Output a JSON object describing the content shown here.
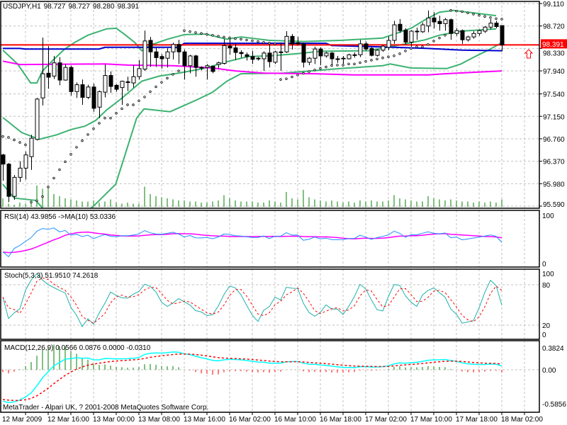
{
  "header": {
    "symbol": "USDJPY,H1",
    "open": "98.727",
    "high": "98.727",
    "low": "98.280",
    "close": "98.391"
  },
  "price_axis": {
    "labels": [
      "99.110",
      "98.720",
      "98.330",
      "97.940",
      "97.540",
      "97.150",
      "96.760",
      "96.370",
      "95.980",
      "95.590"
    ],
    "current_price": "98.391"
  },
  "rsi_panel": {
    "title": "RSI(14) 43.9856  ->MA(10) 53.0336",
    "axis_labels": [
      "100",
      "0"
    ]
  },
  "stoch_panel": {
    "title": "Stoch(5,3,3) 51.9510 74.2618",
    "axis_labels": [
      "100",
      "80",
      "20",
      "0"
    ]
  },
  "macd_panel": {
    "title": "MACD(12,26,9) 0.0566 0.0876 0.0000 -0.0310",
    "axis_labels": [
      "0.3824",
      "0.00",
      "-0.5856"
    ]
  },
  "time_axis": {
    "labels": [
      "12 Mar 2009",
      "12 Mar 16:00",
      "13 Mar 00:00",
      "13 Mar 08:00",
      "13 Mar 16:00",
      "16 Mar 02:00",
      "16 Mar 10:00",
      "16 Mar 18:00",
      "17 Mar 02:00",
      "17 Mar 10:00",
      "17 Mar 18:00",
      "18 Mar 02:00"
    ]
  },
  "copyright": "MetaTrader - Alpari UK, ? 2001-2008 MetaQuotes Software Corp.",
  "colors": {
    "bands": "#3cb371",
    "ma_slow": "#ff00ff",
    "ma_fast": "#0000cd",
    "price_line": "#ff0000",
    "volume": "#008000",
    "rsi": "#1e90ff",
    "rsi_ma": "#ff00ff",
    "stoch_main": "#20b2aa",
    "stoch_signal": "#ff0000",
    "macd_main": "#00ffff",
    "macd_signal": "#ff0000",
    "hist_pos": "#008000",
    "hist_neg": "#ff0000",
    "grid": "#c0c0c0"
  },
  "chart_data": {
    "type": "candlestick",
    "title": "USDJPY,H1",
    "ylim": [
      95.59,
      99.11
    ],
    "current_price": 98.391,
    "candles": [
      [
        96.48,
        96.5,
        96.03,
        96.32
      ],
      [
        96.32,
        96.34,
        95.66,
        95.76
      ],
      [
        95.76,
        96.13,
        95.7,
        96.09
      ],
      [
        96.09,
        96.37,
        96.01,
        96.25
      ],
      [
        96.25,
        96.54,
        96.05,
        96.48
      ],
      [
        96.45,
        96.83,
        96.22,
        96.77
      ],
      [
        96.75,
        97.47,
        96.73,
        97.45
      ],
      [
        97.47,
        98.52,
        97.34,
        97.89
      ],
      [
        97.9,
        98.37,
        97.63,
        97.83
      ],
      [
        97.85,
        98.2,
        97.8,
        98.08
      ],
      [
        98.08,
        98.18,
        97.69,
        97.78
      ],
      [
        97.78,
        98.06,
        97.77,
        98.0
      ],
      [
        98.0,
        98.03,
        97.51,
        97.58
      ],
      [
        97.58,
        97.74,
        97.47,
        97.7
      ],
      [
        97.7,
        97.79,
        97.35,
        97.48
      ],
      [
        97.48,
        97.7,
        97.45,
        97.66
      ],
      [
        97.66,
        97.72,
        97.23,
        97.29
      ],
      [
        97.31,
        97.6,
        97.12,
        97.58
      ],
      [
        97.57,
        98.05,
        97.48,
        97.86
      ],
      [
        97.86,
        97.93,
        97.56,
        97.67
      ],
      [
        97.69,
        97.71,
        97.58,
        97.62
      ],
      [
        97.65,
        97.77,
        97.35,
        97.76
      ],
      [
        97.74,
        97.84,
        97.59,
        97.75
      ],
      [
        97.73,
        98.04,
        97.65,
        97.84
      ],
      [
        97.84,
        98.13,
        97.79,
        97.98
      ],
      [
        97.97,
        98.64,
        97.94,
        98.46
      ],
      [
        98.47,
        98.53,
        98.01,
        98.27
      ],
      [
        98.27,
        98.34,
        98.01,
        98.17
      ],
      [
        98.19,
        98.23,
        97.98,
        98.15
      ],
      [
        98.16,
        98.33,
        98.0,
        98.27
      ],
      [
        98.27,
        98.43,
        98.14,
        98.4
      ],
      [
        98.4,
        98.48,
        98.06,
        98.27
      ],
      [
        98.27,
        98.31,
        97.79,
        98.03
      ],
      [
        98.03,
        98.22,
        97.9,
        98.2
      ],
      [
        98.2,
        98.22,
        97.84,
        98.0
      ],
      [
        98.0,
        98.02,
        97.95,
        97.99
      ],
      [
        98.0,
        98.06,
        97.79,
        98.03
      ],
      [
        98.02,
        98.03,
        97.9,
        97.93
      ],
      [
        98.05,
        98.1,
        97.98,
        98.08
      ],
      [
        98.07,
        98.49,
        98.05,
        98.38
      ],
      [
        98.37,
        98.49,
        98.22,
        98.34
      ],
      [
        98.34,
        98.41,
        98.13,
        98.26
      ],
      [
        98.26,
        98.3,
        98.17,
        98.24
      ],
      [
        98.22,
        98.26,
        98.12,
        98.19
      ],
      [
        98.19,
        98.29,
        98.06,
        98.14
      ],
      [
        98.16,
        98.18,
        98.12,
        98.15
      ],
      [
        98.15,
        98.28,
        97.94,
        98.25
      ],
      [
        98.25,
        98.41,
        98.0,
        98.1
      ],
      [
        98.09,
        98.29,
        98.06,
        98.27
      ],
      [
        98.27,
        98.43,
        97.94,
        98.27
      ],
      [
        98.27,
        98.63,
        98.25,
        98.54
      ],
      [
        98.54,
        98.58,
        98.31,
        98.41
      ],
      [
        98.43,
        98.53,
        98.38,
        98.41
      ],
      [
        98.41,
        98.43,
        98.0,
        98.09
      ],
      [
        98.09,
        98.18,
        98.04,
        98.16
      ],
      [
        98.16,
        98.36,
        98.06,
        98.32
      ],
      [
        98.32,
        98.35,
        98.04,
        98.2
      ],
      [
        98.2,
        98.27,
        98.17,
        98.25
      ],
      [
        98.25,
        98.27,
        98.04,
        98.15
      ],
      [
        98.15,
        98.2,
        98.08,
        98.15
      ],
      [
        98.16,
        98.2,
        98.06,
        98.16
      ],
      [
        98.15,
        98.24,
        98.14,
        98.22
      ],
      [
        98.22,
        98.26,
        98.17,
        98.22
      ],
      [
        98.22,
        98.48,
        98.18,
        98.41
      ],
      [
        98.41,
        98.45,
        98.29,
        98.32
      ],
      [
        98.33,
        98.35,
        98.19,
        98.21
      ],
      [
        98.21,
        98.32,
        98.19,
        98.3
      ],
      [
        98.3,
        98.39,
        98.27,
        98.37
      ],
      [
        98.35,
        98.54,
        98.3,
        98.47
      ],
      [
        98.47,
        98.81,
        98.41,
        98.74
      ],
      [
        98.75,
        98.84,
        98.6,
        98.64
      ],
      [
        98.65,
        98.68,
        98.4,
        98.44
      ],
      [
        98.44,
        98.65,
        98.36,
        98.63
      ],
      [
        98.63,
        98.69,
        98.48,
        98.62
      ],
      [
        98.62,
        98.78,
        98.6,
        98.74
      ],
      [
        98.72,
        98.99,
        98.61,
        98.86
      ],
      [
        98.86,
        98.96,
        98.68,
        98.79
      ],
      [
        98.8,
        98.9,
        98.64,
        98.76
      ],
      [
        98.76,
        98.86,
        98.64,
        98.83
      ],
      [
        98.83,
        98.85,
        98.48,
        98.59
      ],
      [
        98.59,
        98.68,
        98.55,
        98.64
      ],
      [
        98.64,
        98.66,
        98.41,
        98.48
      ],
      [
        98.48,
        98.55,
        98.45,
        98.53
      ],
      [
        98.53,
        98.63,
        98.5,
        98.59
      ],
      [
        98.59,
        98.66,
        98.55,
        98.64
      ],
      [
        98.63,
        98.72,
        98.6,
        98.7
      ],
      [
        98.7,
        98.84,
        98.66,
        98.77
      ],
      [
        98.77,
        98.81,
        98.68,
        98.71
      ],
      [
        98.727,
        98.727,
        98.28,
        98.391
      ]
    ],
    "volumes": [
      40,
      15,
      10,
      20,
      15,
      35,
      100,
      85,
      85,
      60,
      50,
      40,
      35,
      30,
      25,
      25,
      30,
      20,
      25,
      35,
      20,
      15,
      20,
      15,
      15,
      95,
      60,
      50,
      45,
      40,
      35,
      30,
      30,
      25,
      25,
      20,
      20,
      25,
      30,
      55,
      40,
      30,
      25,
      25,
      25,
      20,
      20,
      30,
      25,
      20,
      70,
      40,
      35,
      80,
      45,
      35,
      30,
      25,
      30,
      25,
      20,
      25,
      20,
      30,
      25,
      30,
      25,
      25,
      30,
      55,
      40,
      35,
      30,
      25,
      25,
      50,
      40,
      35,
      30,
      35,
      30,
      25,
      25,
      20,
      25,
      20,
      25,
      20,
      35
    ],
    "bollinger_upper": [
      [
        0,
        98.3
      ],
      [
        2.6,
        98.06
      ],
      [
        4.9,
        97.73
      ],
      [
        6,
        97.73
      ],
      [
        7,
        97.94
      ],
      [
        8.9,
        98.13
      ],
      [
        10.8,
        98.31
      ],
      [
        12.6,
        98.43
      ],
      [
        15,
        98.56
      ],
      [
        18.3,
        98.67
      ],
      [
        20,
        98.68
      ],
      [
        21.4,
        98.58
      ],
      [
        23.3,
        98.43
      ],
      [
        24.5,
        98.29
      ],
      [
        26.4,
        98.4
      ],
      [
        29,
        98.49
      ],
      [
        32,
        98.57
      ],
      [
        35.8,
        98.58
      ],
      [
        39.5,
        98.49
      ],
      [
        42,
        98.53
      ],
      [
        47,
        98.47
      ],
      [
        53,
        98.45
      ],
      [
        59.5,
        98.47
      ],
      [
        67,
        98.51
      ],
      [
        72,
        98.68
      ],
      [
        74.5,
        98.83
      ],
      [
        77,
        98.96
      ],
      [
        79.5,
        98.99
      ],
      [
        87,
        98.9
      ]
    ],
    "bollinger_middle": [
      [
        0,
        97.13
      ],
      [
        3.3,
        96.87
      ],
      [
        6.4,
        96.75
      ],
      [
        9.5,
        96.83
      ],
      [
        12,
        96.92
      ],
      [
        14.5,
        96.98
      ],
      [
        16.4,
        97.08
      ],
      [
        18.3,
        97.26
      ],
      [
        20.8,
        97.45
      ],
      [
        24.5,
        97.76
      ],
      [
        27.6,
        97.85
      ],
      [
        31,
        97.9
      ],
      [
        35.8,
        97.99
      ],
      [
        39.5,
        98.1
      ],
      [
        43.3,
        98.19
      ],
      [
        47,
        98.2
      ],
      [
        52,
        98.24
      ],
      [
        56,
        98.28
      ],
      [
        64.5,
        98.29
      ],
      [
        69.5,
        98.38
      ],
      [
        74.5,
        98.48
      ],
      [
        77,
        98.56
      ],
      [
        80.8,
        98.63
      ],
      [
        87,
        98.67
      ]
    ],
    "bollinger_lower": [
      [
        0,
        95.97
      ],
      [
        2,
        95.73
      ],
      [
        5.8,
        95.69
      ],
      [
        8,
        95.45
      ],
      [
        12,
        95.3
      ],
      [
        15.5,
        95.55
      ],
      [
        16.1,
        95.6
      ],
      [
        19.9,
        95.97
      ],
      [
        21.1,
        96.34
      ],
      [
        23.6,
        97.12
      ],
      [
        24.9,
        97.28
      ],
      [
        29.5,
        97.23
      ],
      [
        34.5,
        97.45
      ],
      [
        37,
        97.57
      ],
      [
        39.5,
        97.76
      ],
      [
        42,
        97.89
      ],
      [
        49.5,
        97.9
      ],
      [
        59.5,
        97.98
      ],
      [
        67,
        98.03
      ],
      [
        68.3,
        98.06
      ],
      [
        72,
        97.99
      ],
      [
        78.3,
        97.98
      ],
      [
        80.8,
        98.06
      ],
      [
        83.3,
        98.19
      ],
      [
        85.8,
        98.31
      ],
      [
        88,
        98.43
      ]
    ],
    "ma_fast": [
      [
        0,
        98.33
      ],
      [
        3,
        98.33
      ],
      [
        4,
        98.32
      ],
      [
        17,
        98.32
      ],
      [
        18,
        98.35
      ],
      [
        31,
        98.35
      ],
      [
        32,
        98.42
      ],
      [
        57,
        98.42
      ],
      [
        58,
        98.38
      ],
      [
        69,
        98.35
      ],
      [
        75,
        98.33
      ],
      [
        81,
        98.3
      ],
      [
        88,
        98.29
      ]
    ],
    "ma_slow": [
      [
        0,
        98.11
      ],
      [
        3,
        98.05
      ],
      [
        18,
        98.06
      ],
      [
        22,
        98.04
      ],
      [
        30,
        98.03
      ],
      [
        37,
        97.99
      ],
      [
        41,
        97.94
      ],
      [
        46,
        97.9
      ],
      [
        55,
        97.89
      ],
      [
        62,
        97.87
      ],
      [
        75,
        97.87
      ],
      [
        78,
        97.89
      ],
      [
        88,
        97.94
      ]
    ]
  }
}
